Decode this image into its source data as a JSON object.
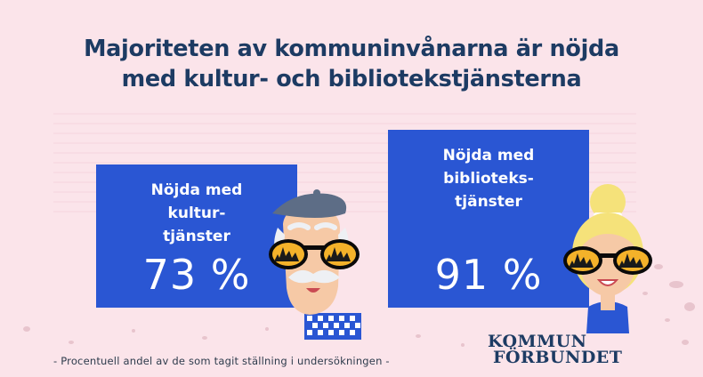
{
  "title_lines": [
    "Majoriteten av kommuninvånarna är nöjda",
    "med kultur- och bibliotekstjänsterna"
  ],
  "chart_data": {
    "type": "bar",
    "categories": [
      "Nöjda med kultur-tjänster",
      "Nöjda med biblioteks-tjänster"
    ],
    "category_lines": [
      [
        "Nöjda med",
        "kultur-",
        "tjänster"
      ],
      [
        "Nöjda med",
        "biblioteks-",
        "tjänster"
      ]
    ],
    "values": [
      73,
      91
    ],
    "value_labels": [
      "73 %",
      "91 %"
    ],
    "ylim": [
      0,
      100
    ],
    "grid": true
  },
  "footnote": "- Procentuell andel av de som tagit ställning i undersökningen -",
  "logo": {
    "line1": "KOMMUN",
    "line2": "FÖRBUNDET"
  },
  "colors": {
    "background": "#fbe4ea",
    "bar": "#2a56d3",
    "title": "#1d3b63",
    "grid": "#f4d5dd"
  },
  "decorations": [
    "man-with-beret-icon",
    "woman-with-bun-icon"
  ]
}
